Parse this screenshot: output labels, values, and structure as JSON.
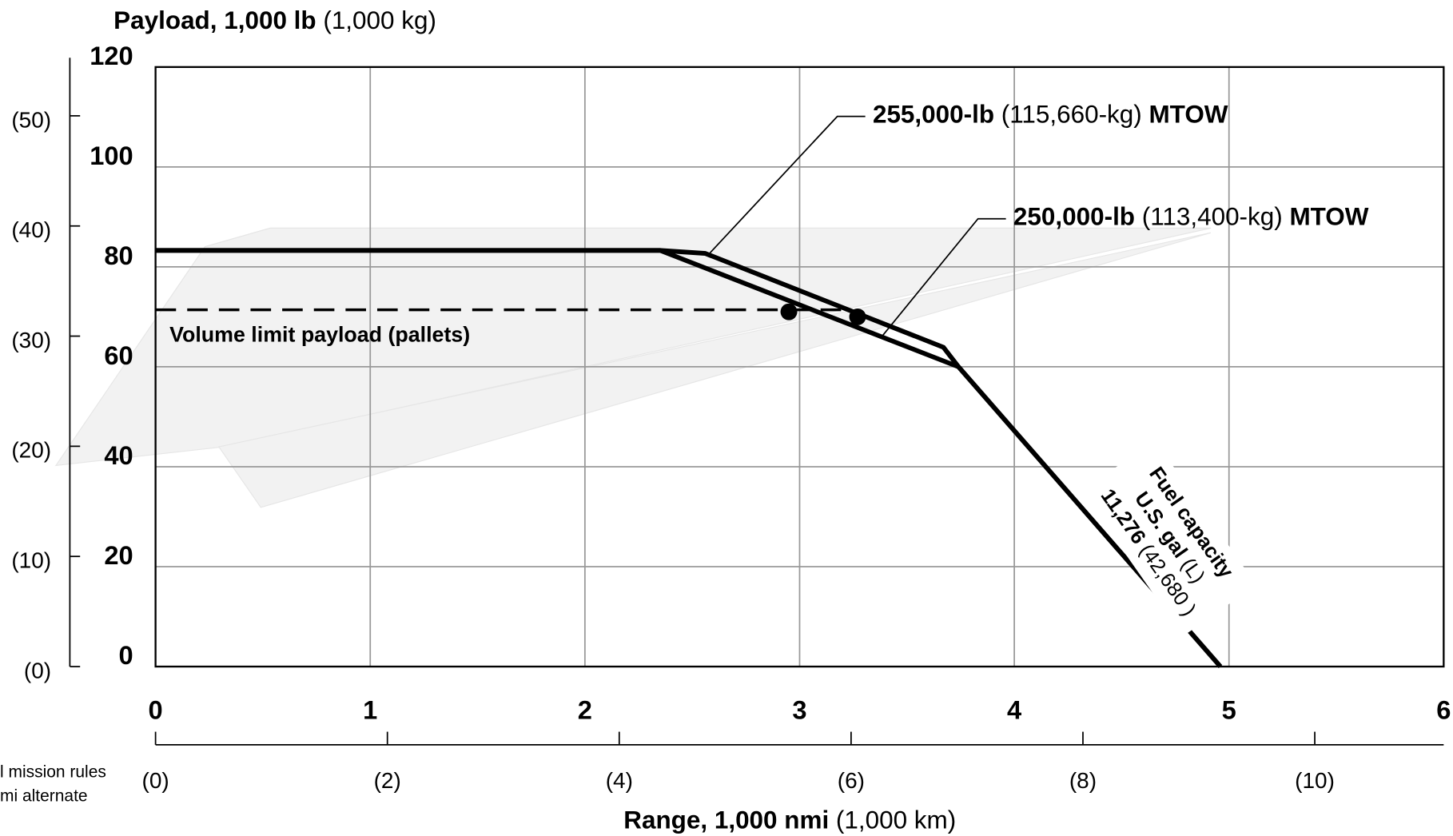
{
  "chart_data": {
    "type": "line",
    "ylabel": "Payload, 1,000 lb",
    "ylabel_unit": "(1,000 kg)",
    "xlabel": "Range, 1,000 nmi",
    "xlabel_unit": "(1,000 km)",
    "xlim": [
      0,
      6
    ],
    "xticks": [
      0,
      1,
      2,
      3,
      4,
      5,
      6
    ],
    "ylim": [
      0,
      120
    ],
    "yticks": [
      0,
      20,
      40,
      60,
      80,
      100,
      120
    ],
    "y2lim": [
      0,
      54.43
    ],
    "y2ticks": [
      {
        "value": 0,
        "label": "(0)"
      },
      {
        "value": 10,
        "label": "(10)"
      },
      {
        "value": 20,
        "label": "(20)"
      },
      {
        "value": 30,
        "label": "(30)"
      },
      {
        "value": 40,
        "label": "(40)"
      },
      {
        "value": 50,
        "label": "(50)"
      }
    ],
    "x2lim": [
      0,
      11.112
    ],
    "x2ticks": [
      {
        "value": 0,
        "label": "(0)"
      },
      {
        "value": 2,
        "label": "(2)"
      },
      {
        "value": 4,
        "label": "(4)"
      },
      {
        "value": 6,
        "label": "(6)"
      },
      {
        "value": 8,
        "label": "(8)"
      },
      {
        "value": 10,
        "label": "(10)"
      }
    ],
    "grid": true,
    "series": [
      {
        "name": "255,000-lb",
        "name_metric": "(115,660-kg)",
        "name_tail": "MTOW",
        "color": "#000000",
        "style": "solid",
        "x": [
          0,
          2.35,
          2.56,
          3.67,
          3.74,
          4.96
        ],
        "values": [
          83.3,
          83.3,
          82.7,
          63.9,
          60,
          0
        ]
      },
      {
        "name": "250,000-lb",
        "name_metric": "(113,400-kg)",
        "name_tail": "MTOW",
        "color": "#000000",
        "style": "solid",
        "x": [
          0,
          2.35,
          3.74,
          4.96
        ],
        "values": [
          83.3,
          83.3,
          60,
          0
        ]
      },
      {
        "name": "Volume limit payload (pallets)",
        "color": "#000000",
        "style": "dashed",
        "x": [
          0,
          3.2
        ],
        "values": [
          71.4,
          71.4
        ]
      },
      {
        "color": "#000000",
        "style": "points",
        "x": [
          2.95,
          3.27
        ],
        "values": [
          71,
          70
        ]
      }
    ],
    "fuel": {
      "title": "Fuel capacity",
      "unit": "U.S. gal",
      "unit_metric": "(L)",
      "value": "11,276",
      "value_metric": "(42,680 )"
    },
    "notes": [
      "l mission rules",
      "mi alternate"
    ]
  }
}
